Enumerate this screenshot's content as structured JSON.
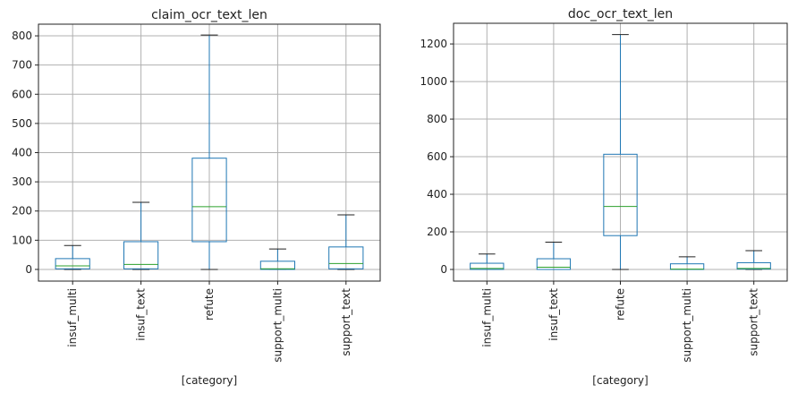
{
  "chart_data": [
    {
      "type": "box",
      "title": "claim_ocr_text_len",
      "xlabel": "[category]",
      "ylabel": "",
      "ylim": [
        -40,
        840
      ],
      "yticks": [
        0,
        100,
        200,
        300,
        400,
        500,
        600,
        700,
        800
      ],
      "grid": true,
      "categories": [
        "insuf_multi",
        "insuf_text",
        "refute",
        "support_multi",
        "support_text"
      ],
      "boxes": [
        {
          "whisker_low": 0,
          "q1": 2,
          "median": 12,
          "q3": 37,
          "whisker_high": 82
        },
        {
          "whisker_low": 0,
          "q1": 2,
          "median": 17,
          "q3": 95,
          "whisker_high": 230
        },
        {
          "whisker_low": 0,
          "q1": 95,
          "median": 215,
          "q3": 381,
          "whisker_high": 803
        },
        {
          "whisker_low": 0,
          "q1": 0,
          "median": 2,
          "q3": 28,
          "whisker_high": 70
        },
        {
          "whisker_low": 0,
          "q1": 2,
          "median": 20,
          "q3": 77,
          "whisker_high": 187
        }
      ],
      "colors": {
        "box": "#1f77b4",
        "median": "#2ca02c",
        "whisker": "#1f77b4",
        "grid": "#b0b0b0"
      }
    },
    {
      "type": "box",
      "title": "doc_ocr_text_len",
      "xlabel": "[category]",
      "ylabel": "",
      "ylim": [
        -62,
        1310
      ],
      "yticks": [
        0,
        200,
        400,
        600,
        800,
        1000,
        1200
      ],
      "grid": true,
      "categories": [
        "insuf_multi",
        "insuf_text",
        "refute",
        "support_multi",
        "support_text"
      ],
      "boxes": [
        {
          "whisker_low": 0,
          "q1": 0,
          "median": 5,
          "q3": 33,
          "whisker_high": 82
        },
        {
          "whisker_low": 0,
          "q1": 0,
          "median": 12,
          "q3": 57,
          "whisker_high": 145
        },
        {
          "whisker_low": 0,
          "q1": 180,
          "median": 335,
          "q3": 613,
          "whisker_high": 1250
        },
        {
          "whisker_low": 0,
          "q1": 0,
          "median": 2,
          "q3": 30,
          "whisker_high": 67
        },
        {
          "whisker_low": 0,
          "q1": 2,
          "median": 5,
          "q3": 36,
          "whisker_high": 100
        }
      ],
      "colors": {
        "box": "#1f77b4",
        "median": "#2ca02c",
        "whisker": "#1f77b4",
        "grid": "#b0b0b0"
      }
    }
  ]
}
